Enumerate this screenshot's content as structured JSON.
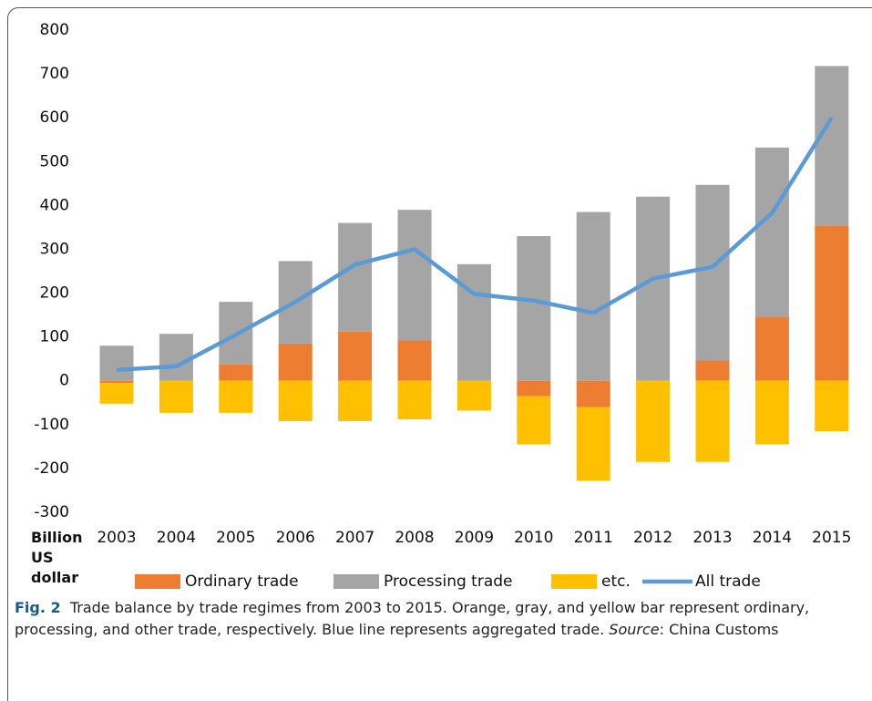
{
  "chart_data": {
    "type": "bar",
    "y_label": "Billion US dollar",
    "categories": [
      "2003",
      "2004",
      "2005",
      "2006",
      "2007",
      "2008",
      "2009",
      "2010",
      "2011",
      "2012",
      "2013",
      "2014",
      "2015"
    ],
    "series": [
      {
        "name": "Ordinary trade",
        "color": "#ed7d31",
        "values": [
          -5,
          0,
          37,
          85,
          112,
          92,
          0,
          -35,
          -60,
          0,
          47,
          145,
          353
        ]
      },
      {
        "name": "Processing trade",
        "color": "#a5a5a5",
        "values": [
          80,
          107,
          143,
          188,
          248,
          298,
          266,
          330,
          385,
          420,
          400,
          387,
          365
        ]
      },
      {
        "name": "etc.",
        "color": "#ffc000",
        "values": [
          -47,
          -73,
          -73,
          -92,
          -92,
          -88,
          -68,
          -110,
          -168,
          -185,
          -185,
          -145,
          -115
        ]
      },
      {
        "name": "All trade",
        "color": "#5b9bd5",
        "type": "line",
        "values": [
          25,
          33,
          105,
          180,
          265,
          300,
          198,
          183,
          155,
          233,
          260,
          383,
          600
        ]
      }
    ],
    "ylim": [
      -300,
      800
    ],
    "yticks": [
      -300,
      -200,
      -100,
      0,
      100,
      200,
      300,
      400,
      500,
      600,
      700,
      800
    ],
    "grid": false,
    "legend": "bottom",
    "caption_label": "Fig. 2",
    "caption": "Trade balance by trade regimes from 2003 to 2015. Orange, gray, and yellow bar represent ordinary, processing, and other trade, respectively. Blue line represents aggregated trade.",
    "source_label": "Source",
    "source": ": China Customs"
  }
}
